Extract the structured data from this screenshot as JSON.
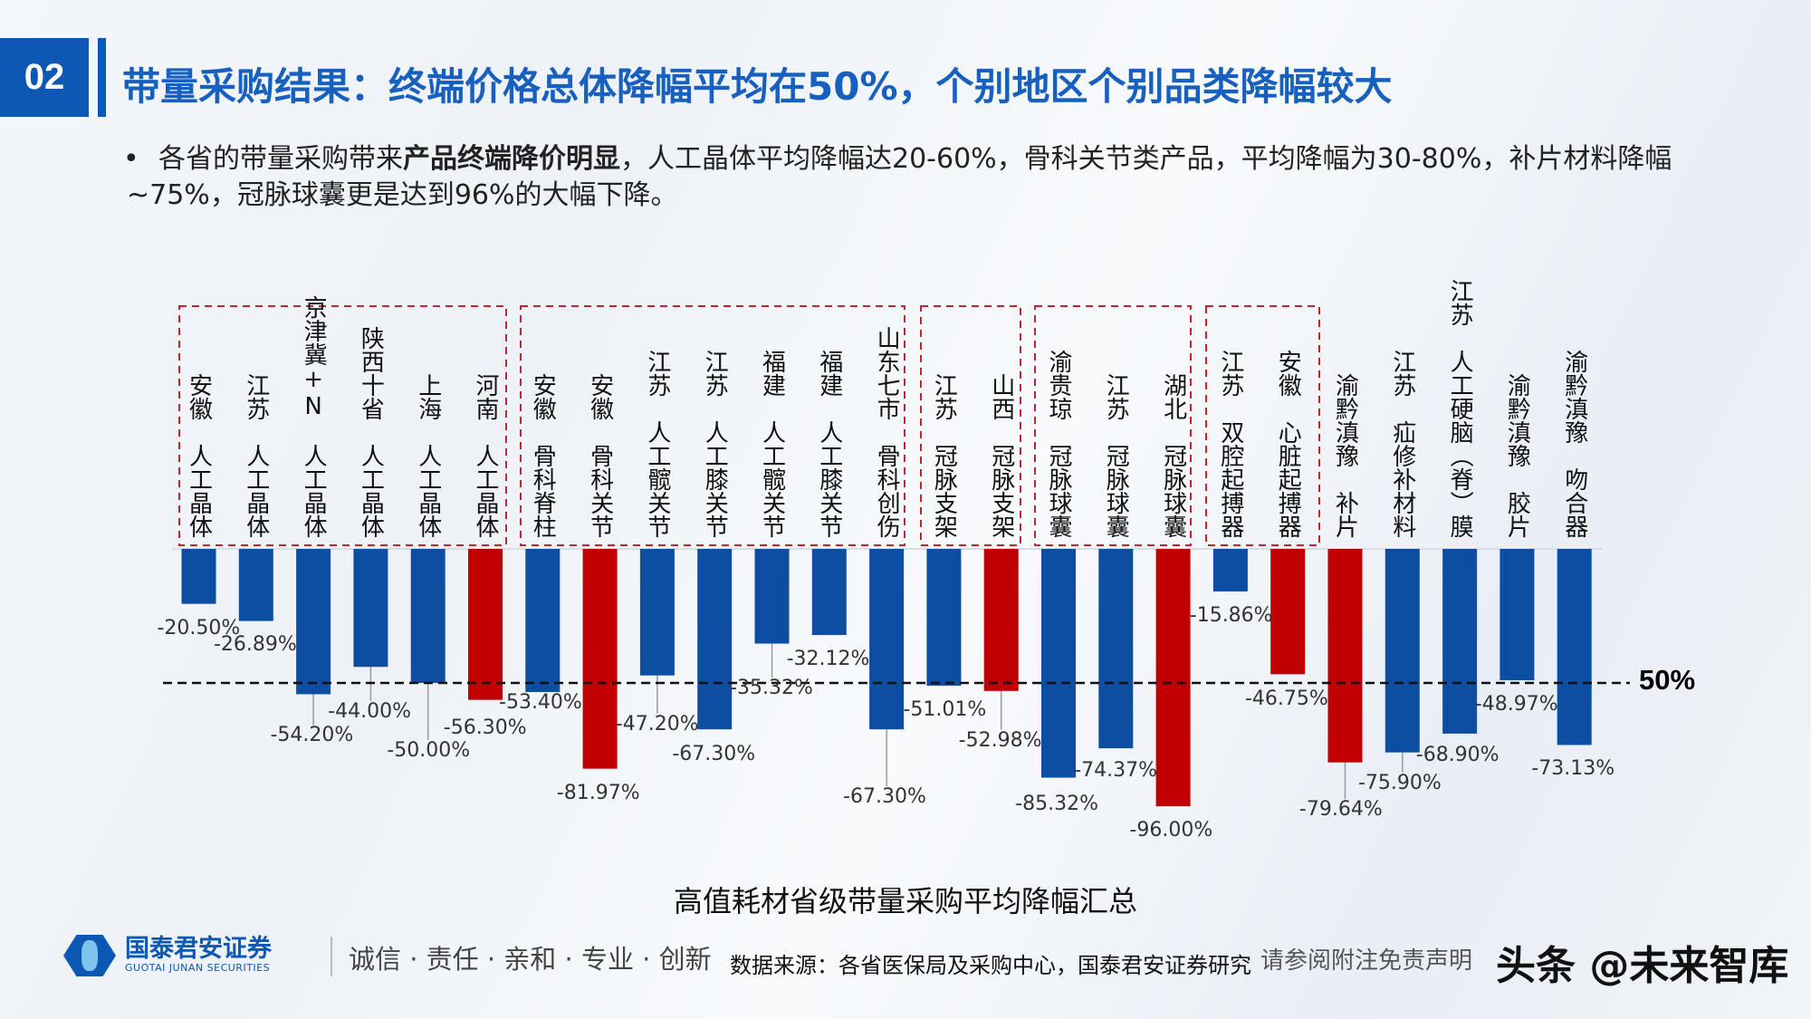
{
  "header": {
    "section_number": "02",
    "title": "带量采购结果：终端价格总体降幅平均在50%，个别地区个别品类降幅较大"
  },
  "bullet": {
    "dot": "•",
    "pre": "各省的带量采购带来",
    "bold": "产品终端降价明显",
    "post": "，人工晶体平均降幅达20-60%，骨科关节类产品，平均降幅为30-80%，补片材料降幅~75%，冠脉球囊更是达到96%的大幅下降。"
  },
  "chart_data": {
    "type": "bar",
    "title": "高值耗材省级带量采购平均降幅汇总",
    "reference_line": {
      "value": -50,
      "label": "50%",
      "style": "dashed"
    },
    "categories": [
      "安徽 人工晶体",
      "江苏 人工晶体",
      "京津冀+N 人工晶体",
      "陕西十省 人工晶体",
      "上海 人工晶体",
      "河南 人工晶体",
      "安徽 骨科脊柱",
      "安徽 骨科关节",
      "江苏 人工髋关节",
      "江苏 人工膝关节",
      "福建 人工髋关节",
      "福建 人工膝关节",
      "山东七市 骨科创伤",
      "江苏 冠脉支架",
      "山西 冠脉支架",
      "渝贵琼 冠脉球囊",
      "江苏 冠脉球囊",
      "湖北 冠脉球囊",
      "江苏 双腔起搏器",
      "安徽 心脏起搏器",
      "渝黔滇豫 补片",
      "江苏 疝修补材料",
      "江苏 人工硬脑（脊）膜",
      "渝黔滇豫 胶片",
      "渝黔滇豫 吻合器"
    ],
    "values": [
      -20.5,
      -26.89,
      -54.2,
      -44.0,
      -50.0,
      -56.3,
      -53.4,
      -81.97,
      -47.2,
      -67.3,
      -35.32,
      -32.12,
      -67.3,
      -51.01,
      -52.98,
      -85.32,
      -74.37,
      -96.0,
      -15.86,
      -46.75,
      -79.64,
      -75.9,
      -68.9,
      -48.97,
      -73.13
    ],
    "labels": [
      "-20.50%",
      "-26.89%",
      "-54.20%",
      "-44.00%",
      "-50.00%",
      "-56.30%",
      "-53.40%",
      "-81.97%",
      "-47.20%",
      "-67.30%",
      "-35.32%",
      "-32.12%",
      "-67.30%",
      "-51.01%",
      "-52.98%",
      "-85.32%",
      "-74.37%",
      "-96.00%",
      "-15.86%",
      "-46.75%",
      "-79.64%",
      "-75.90%",
      "-68.90%",
      "-48.97%",
      "-73.13%"
    ],
    "highlighted": [
      false,
      false,
      false,
      false,
      false,
      true,
      false,
      true,
      false,
      false,
      false,
      false,
      false,
      false,
      true,
      false,
      false,
      true,
      false,
      true,
      true,
      false,
      false,
      false,
      false
    ],
    "groups": [
      [
        0,
        5
      ],
      [
        6,
        12
      ],
      [
        13,
        14
      ],
      [
        15,
        17
      ],
      [
        18,
        19
      ]
    ],
    "colors": {
      "normal": "#0d4ea3",
      "highlight": "#c00000",
      "group_box": "#c0262b"
    }
  },
  "footer": {
    "logo_cn": "国泰君安证券",
    "logo_en": "GUOTAI JUNAN SECURITIES",
    "motto": "诚信 · 责任 · 亲和 · 专业 · 创新",
    "source": "数据来源：各省医保局及采购中心，国泰君安证券研究",
    "disclaimer": "请参阅附注免责声明",
    "watermark": "头条 @未来智库"
  }
}
